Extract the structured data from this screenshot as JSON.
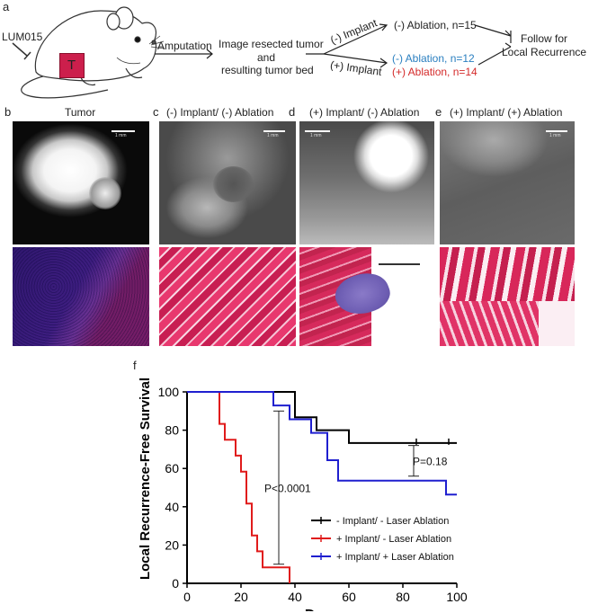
{
  "panel_a": {
    "letter": "a",
    "drug_label": "LUM015",
    "tumor_label": "T",
    "amputation": "Amputation",
    "image_line1": "Image resected tumor",
    "image_line2": "and",
    "image_line3": "resulting tumor bed",
    "no_implant": "(-) Implant",
    "plus_implant": "(+) Implant",
    "group1": "(-) Ablation, n=15",
    "group2": "(-) Ablation, n=12",
    "group3": "(+) Ablation, n=14",
    "follow_line1": "Follow for",
    "follow_line2": "Local Recurrence",
    "colors": {
      "blue": "#2a7fc0",
      "red": "#d42a2a",
      "tumor": "#cc1f4c"
    }
  },
  "panels_bcde": [
    {
      "letter": "b",
      "title": "Tumor",
      "scale": "1 mm"
    },
    {
      "letter": "c",
      "title": "(-) Implant/ (-) Ablation",
      "scale": "1 mm"
    },
    {
      "letter": "d",
      "title": "(+) Implant/ (-) Ablation",
      "scale": "1 mm"
    },
    {
      "letter": "e",
      "title": "(+) Implant/ (+) Ablation",
      "scale": "1 mm"
    }
  ],
  "panel_f": {
    "letter": "f",
    "chart_data": {
      "type": "line",
      "subtype": "kaplan-meier step",
      "xlabel": "Days",
      "ylabel": "Local Recurrence-Free Survival",
      "xlim": [
        0,
        100
      ],
      "ylim": [
        0,
        100
      ],
      "xticks": [
        0,
        20,
        40,
        60,
        80,
        100
      ],
      "yticks": [
        0,
        20,
        40,
        60,
        80,
        100
      ],
      "series": [
        {
          "name": "- Implant/ - Laser Ablation",
          "color": "#000000",
          "x": [
            0,
            40,
            40,
            48,
            48,
            60,
            60,
            100
          ],
          "y": [
            100,
            100,
            86.7,
            86.7,
            80,
            80,
            73.3,
            73.3
          ],
          "censor_x": [
            85,
            97
          ],
          "censor_y": [
            73.3,
            73.3
          ]
        },
        {
          "name": "+ Implant/ - Laser Ablation",
          "color": "#e01b1b",
          "x": [
            0,
            12,
            12,
            14,
            14,
            18,
            18,
            20,
            20,
            22,
            22,
            24,
            24,
            26,
            26,
            28,
            28,
            38,
            38
          ],
          "y": [
            100,
            100,
            83.3,
            83.3,
            75,
            75,
            66.7,
            66.7,
            58.3,
            58.3,
            41.7,
            41.7,
            25,
            25,
            16.7,
            16.7,
            8.3,
            8.3,
            0
          ],
          "censor_x": [],
          "censor_y": []
        },
        {
          "name": "+ Implant/ + Laser Ablation",
          "color": "#1f1fcf",
          "x": [
            0,
            32,
            32,
            38,
            38,
            46,
            46,
            52,
            52,
            56,
            56,
            96,
            96,
            100
          ],
          "y": [
            100,
            100,
            92.9,
            92.9,
            85.7,
            85.7,
            78.6,
            78.6,
            64.3,
            64.3,
            53.6,
            53.6,
            46.4,
            46.4
          ],
          "censor_x": [],
          "censor_y": []
        }
      ],
      "annotations": [
        {
          "text": "P<0.0001",
          "x": 34,
          "y": 50,
          "bracket_x": 34,
          "bracket_y": [
            10,
            90
          ]
        },
        {
          "text": "P=0.18",
          "x": 85,
          "y": 64,
          "bracket_x": 84,
          "bracket_y": [
            56,
            72
          ]
        }
      ],
      "legend_placement": "bottom-right"
    }
  }
}
